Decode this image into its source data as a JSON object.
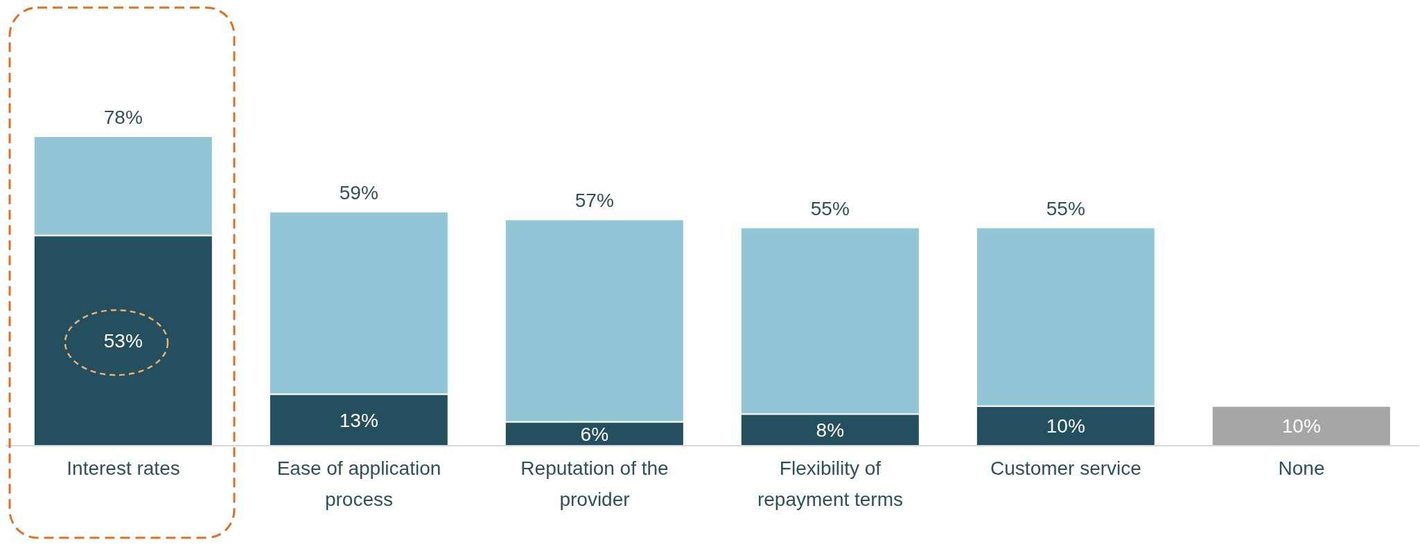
{
  "chart_data": {
    "type": "bar",
    "stacked": true,
    "categories": [
      "Interest rates",
      "Ease of application process",
      "Reputation of the provider",
      "Flexibility of repayment terms",
      "Customer service",
      "None"
    ],
    "series": [
      {
        "color": "#234f5e",
        "colors": [
          "#234f5e",
          "#234f5e",
          "#234f5e",
          "#234f5e",
          "#234f5e",
          "#a6a6a6"
        ],
        "values": [
          53,
          13,
          6,
          8,
          10,
          10
        ],
        "value_labels": [
          "53%",
          "13%",
          "6%",
          "8%",
          "10%",
          "10%"
        ]
      },
      {
        "color": "#92c5d6",
        "values": [
          25,
          46,
          51,
          47,
          45,
          null
        ]
      }
    ],
    "totals": [
      "78%",
      "59%",
      "57%",
      "55%",
      "55%",
      null
    ]
  }
}
